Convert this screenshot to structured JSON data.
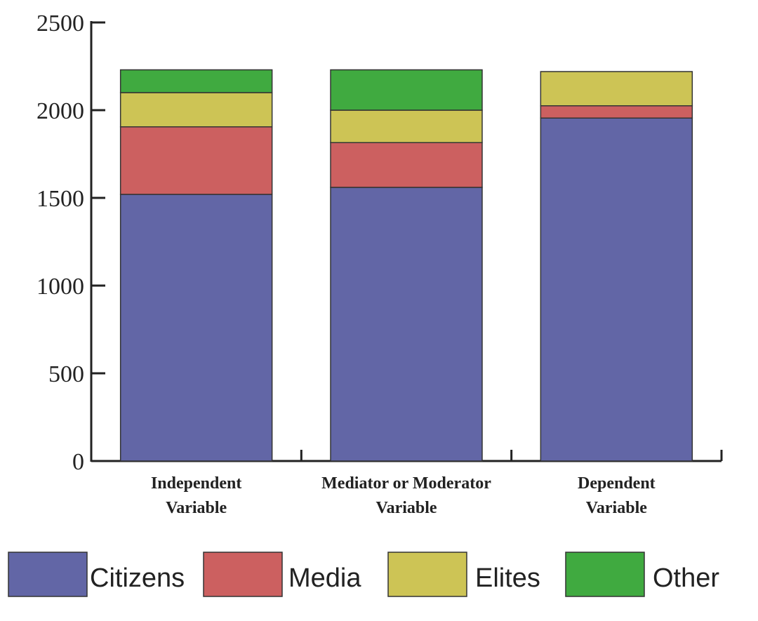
{
  "chart_data": {
    "type": "bar",
    "stacked": true,
    "categories": [
      [
        "Independent",
        "Variable"
      ],
      [
        "Mediator or Moderator",
        "Variable"
      ],
      [
        "Dependent",
        "Variable"
      ]
    ],
    "series": [
      {
        "name": "Citizens",
        "color": "#6266a6",
        "values": [
          1520,
          1560,
          1955
        ]
      },
      {
        "name": "Media",
        "color": "#cc6060",
        "values": [
          385,
          255,
          70
        ]
      },
      {
        "name": "Elites",
        "color": "#cdc455",
        "values": [
          195,
          185,
          195
        ]
      },
      {
        "name": "Other",
        "color": "#40aa40",
        "values": [
          130,
          230,
          0
        ]
      }
    ],
    "ylim": [
      0,
      2500
    ],
    "yticks": [
      0,
      500,
      1000,
      1500,
      2000,
      2500
    ],
    "grid": false,
    "legend_position": "bottom"
  }
}
